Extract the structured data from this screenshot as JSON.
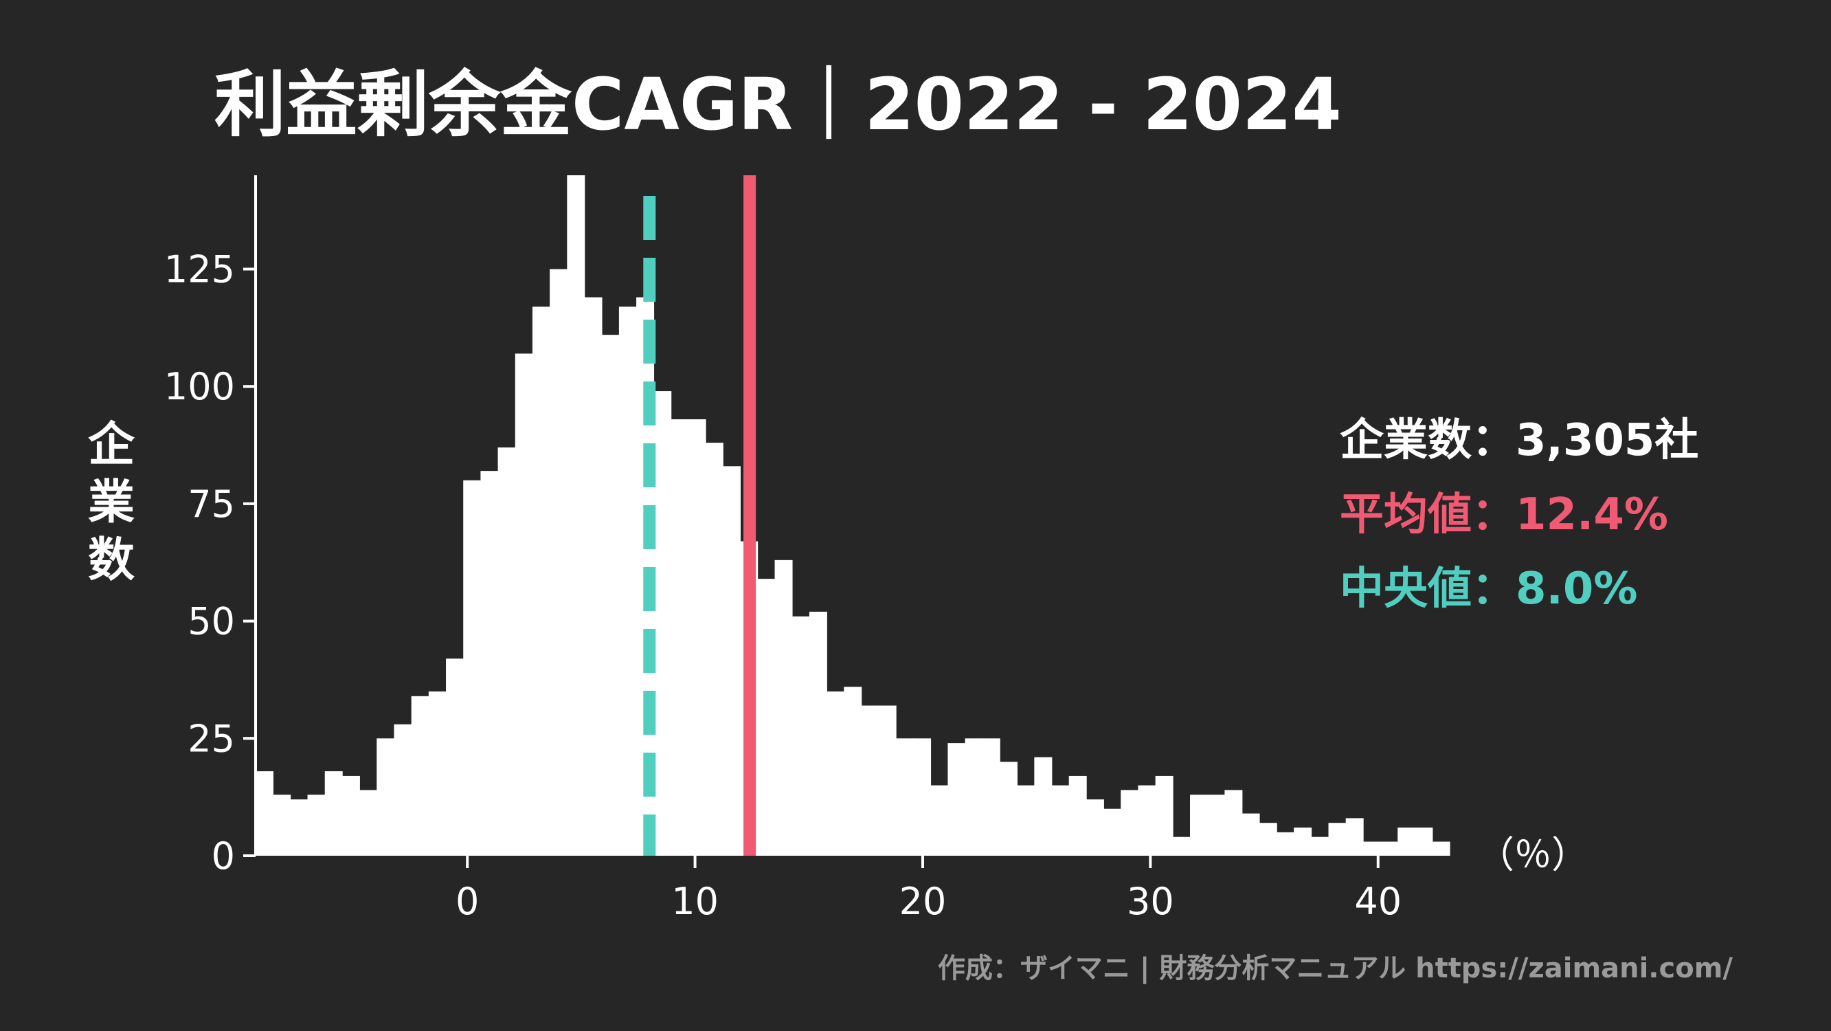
{
  "chart_data": {
    "type": "histogram",
    "title": "利益剰余金CAGR｜2022 - 2024",
    "xlabel": "（％）",
    "ylabel": "企業数",
    "xlim": [
      -9.3,
      43.9
    ],
    "ylim": [
      0,
      145
    ],
    "xticks": [
      0,
      10,
      20,
      30,
      40
    ],
    "yticks": [
      0,
      25,
      50,
      75,
      100,
      125
    ],
    "bin_start": -9.3,
    "bin_width": 0.76,
    "counts": [
      18,
      13,
      12,
      13,
      18,
      17,
      14,
      25,
      28,
      34,
      35,
      42,
      80,
      82,
      87,
      107,
      117,
      125,
      145,
      119,
      111,
      117,
      119,
      99,
      93,
      93,
      88,
      83,
      67,
      59,
      63,
      51,
      52,
      35,
      36,
      32,
      32,
      25,
      25,
      15,
      24,
      25,
      25,
      20,
      15,
      21,
      15,
      17,
      12,
      10,
      14,
      15,
      17,
      4,
      13,
      13,
      14,
      9,
      7,
      5,
      6,
      4,
      7,
      8,
      3,
      3,
      6,
      6,
      3
    ],
    "color": "#ffffff",
    "mean": {
      "value": 12.4,
      "color": "#f05a72"
    },
    "median": {
      "value": 8.0,
      "color": "#50cfc1"
    },
    "legend": {
      "count_label": "企業数：3,305社",
      "mean_label": "平均値：12.4%",
      "median_label": "中央値：8.0%",
      "position": "right"
    },
    "footer": "作成：ザイマニ | 財務分析マニュアル https://zaimani.com/"
  },
  "colors": {
    "background": "#262626",
    "text": "#ffffff",
    "footer": "#9a9a9a"
  }
}
